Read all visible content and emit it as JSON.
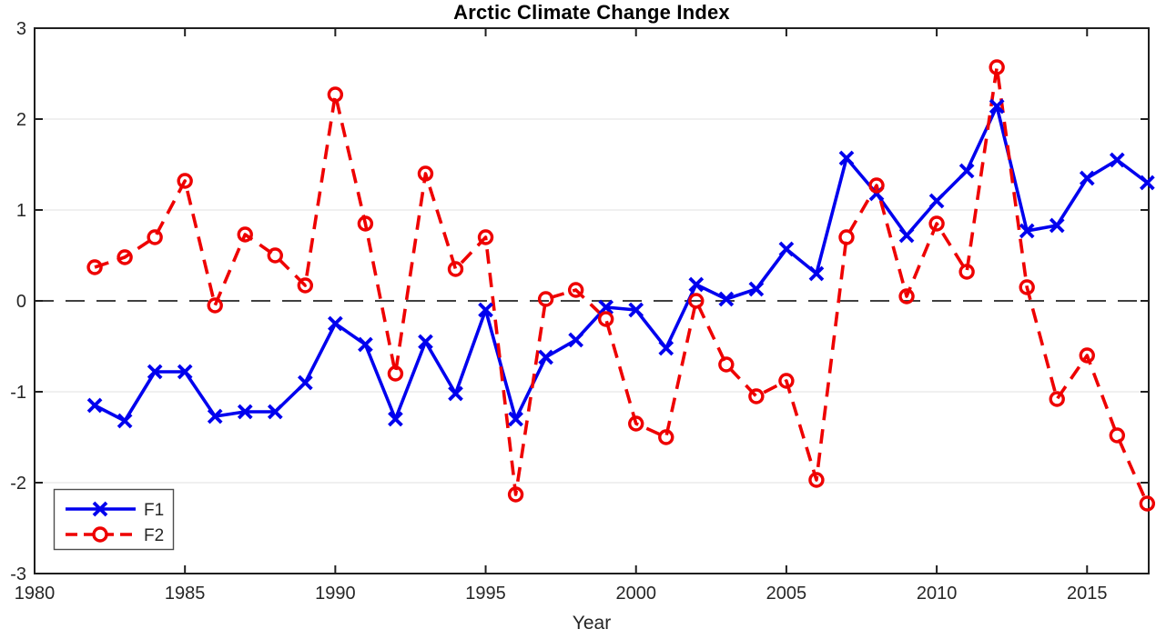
{
  "chart_data": {
    "type": "line",
    "title": "Arctic Climate Change Index",
    "xlabel": "Year",
    "ylabel": "",
    "x": [
      1982,
      1983,
      1984,
      1985,
      1986,
      1987,
      1988,
      1989,
      1990,
      1991,
      1992,
      1993,
      1994,
      1995,
      1996,
      1997,
      1998,
      1999,
      2000,
      2001,
      2002,
      2003,
      2004,
      2005,
      2006,
      2007,
      2008,
      2009,
      2010,
      2011,
      2012,
      2013,
      2014,
      2015,
      2016,
      2017
    ],
    "series": [
      {
        "name": "F1",
        "color": "#0000EE",
        "line_style": "solid",
        "marker": "x",
        "values": [
          -1.15,
          -1.32,
          -0.78,
          -0.78,
          -1.27,
          -1.22,
          -1.22,
          -0.9,
          -0.25,
          -0.48,
          -1.3,
          -0.45,
          -1.02,
          -0.1,
          -1.3,
          -0.62,
          -0.43,
          -0.07,
          -0.1,
          -0.52,
          0.18,
          0.02,
          0.13,
          0.57,
          0.3,
          1.57,
          1.18,
          0.72,
          1.1,
          1.43,
          2.14,
          0.77,
          0.83,
          1.35,
          1.55,
          1.3
        ]
      },
      {
        "name": "F2",
        "color": "#EE0000",
        "line_style": "dashed",
        "marker": "circle",
        "values": [
          0.37,
          0.48,
          0.7,
          1.32,
          -0.05,
          0.73,
          0.5,
          0.17,
          2.27,
          0.85,
          -0.8,
          1.4,
          0.35,
          0.7,
          -2.13,
          0.02,
          0.12,
          -0.2,
          -1.35,
          -1.5,
          0.0,
          -0.7,
          -1.05,
          -0.88,
          -1.97,
          0.7,
          1.27,
          0.05,
          0.85,
          0.32,
          2.57,
          0.15,
          -1.08,
          -0.6,
          -1.48,
          -2.23
        ]
      }
    ],
    "xlim": [
      1980,
      2017.05
    ],
    "ylim": [
      -3,
      3
    ],
    "xticks": [
      1980,
      1985,
      1990,
      1995,
      2000,
      2005,
      2010,
      2015
    ],
    "yticks": [
      -3,
      -2,
      -1,
      0,
      1,
      2,
      3
    ],
    "grid": "horizontal",
    "zero_line": {
      "value": 0,
      "style": "dashed",
      "color": "#404040"
    },
    "legend": {
      "position": "bottom-left",
      "entries": [
        "F1",
        "F2"
      ]
    },
    "colors": {
      "frame": "#1f1f1f",
      "grid": "#e7e7e7",
      "tick_text": "#262626",
      "background": "#ffffff"
    }
  }
}
